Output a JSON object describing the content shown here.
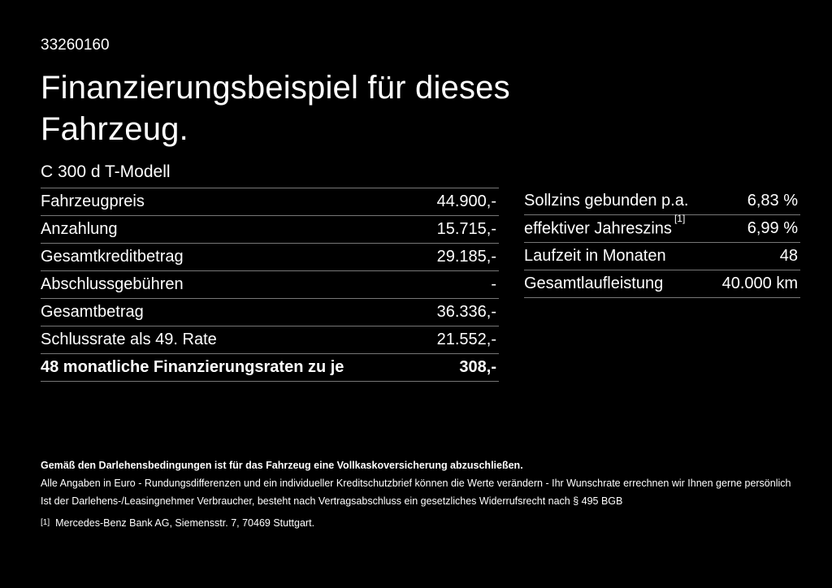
{
  "page": {
    "background": "#000000",
    "text_color": "#ffffff",
    "divider_color": "#777777"
  },
  "header": {
    "doc_id": "33260160",
    "title": "Finanzierungsbeispiel für dieses Fahrzeug.",
    "model": "C 300 d T-Modell"
  },
  "financing_table": {
    "rows": [
      {
        "label": "Fahrzeugpreis",
        "value": "44.900,-"
      },
      {
        "label": "Anzahlung",
        "value": "15.715,-"
      },
      {
        "label": "Gesamtkreditbetrag",
        "value": "29.185,-"
      },
      {
        "label": "Abschlussgebühren",
        "value": "-"
      },
      {
        "label": "Gesamtbetrag",
        "value": "36.336,-"
      },
      {
        "label": "Schlussrate als 49. Rate",
        "value": "21.552,-"
      },
      {
        "label": "48 monatliche Finanzierungsraten zu je",
        "value": "308,-"
      }
    ]
  },
  "conditions_table": {
    "rows": [
      {
        "label": "Sollzins gebunden p.a.",
        "value": "6,83 %"
      },
      {
        "label": "effektiver Jahreszins",
        "sup": "[1]",
        "value": "6,99 %"
      },
      {
        "label": "Laufzeit in Monaten",
        "value": "48"
      },
      {
        "label": "Gesamtlaufleistung",
        "value": "40.000 km"
      }
    ]
  },
  "footer": {
    "insurance_note": "Gemäß den Darlehensbedingungen ist für das Fahrzeug eine Vollkaskoversicherung abzuschließen.",
    "disclaimer_line1": "Alle Angaben in Euro - Rundungsdifferenzen und ein individueller Kreditschutzbrief können die Werte verändern - Ihr Wunschrate errechnen wir Ihnen gerne persönlich",
    "disclaimer_line2": "Ist der Darlehens-/Leasingnehmer Verbraucher, besteht nach Vertragsabschluss ein gesetzliches Widerrufsrecht nach § 495 BGB",
    "footnote_marker": "[1]",
    "footnote_text": "Mercedes-Benz Bank AG, Siemensstr. 7, 70469 Stuttgart."
  }
}
